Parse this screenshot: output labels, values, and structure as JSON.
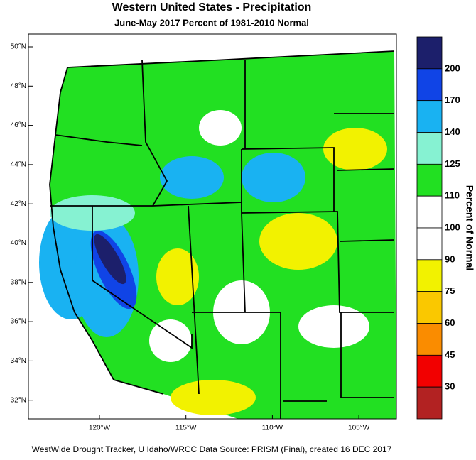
{
  "header": {
    "title": "Western United States - Precipitation",
    "subtitle": "June-May 2017  Percent of 1981-2010 Normal"
  },
  "map": {
    "lat_labels": [
      "50°N",
      "48°N",
      "46°N",
      "44°N",
      "42°N",
      "40°N",
      "38°N",
      "36°N",
      "34°N",
      "32°N"
    ],
    "lon_labels": [
      "120°W",
      "115°W",
      "110°W",
      "105°W"
    ]
  },
  "colorbar": {
    "title": "Percent of Normal",
    "labels": [
      200,
      170,
      140,
      125,
      110,
      100,
      90,
      75,
      60,
      45,
      30
    ],
    "colors": [
      "#1c1f6b",
      "#1044e6",
      "#19b2f2",
      "#86f2d2",
      "#22e022",
      "#ffffff",
      "#ffffff",
      "#f2f200",
      "#fac800",
      "#fa8c00",
      "#f20000",
      "#b22222"
    ]
  },
  "footer": {
    "credit": "WestWide Drought Tracker, U Idaho/WRCC Data Source: PRISM (Final), created 16 DEC 2017"
  }
}
